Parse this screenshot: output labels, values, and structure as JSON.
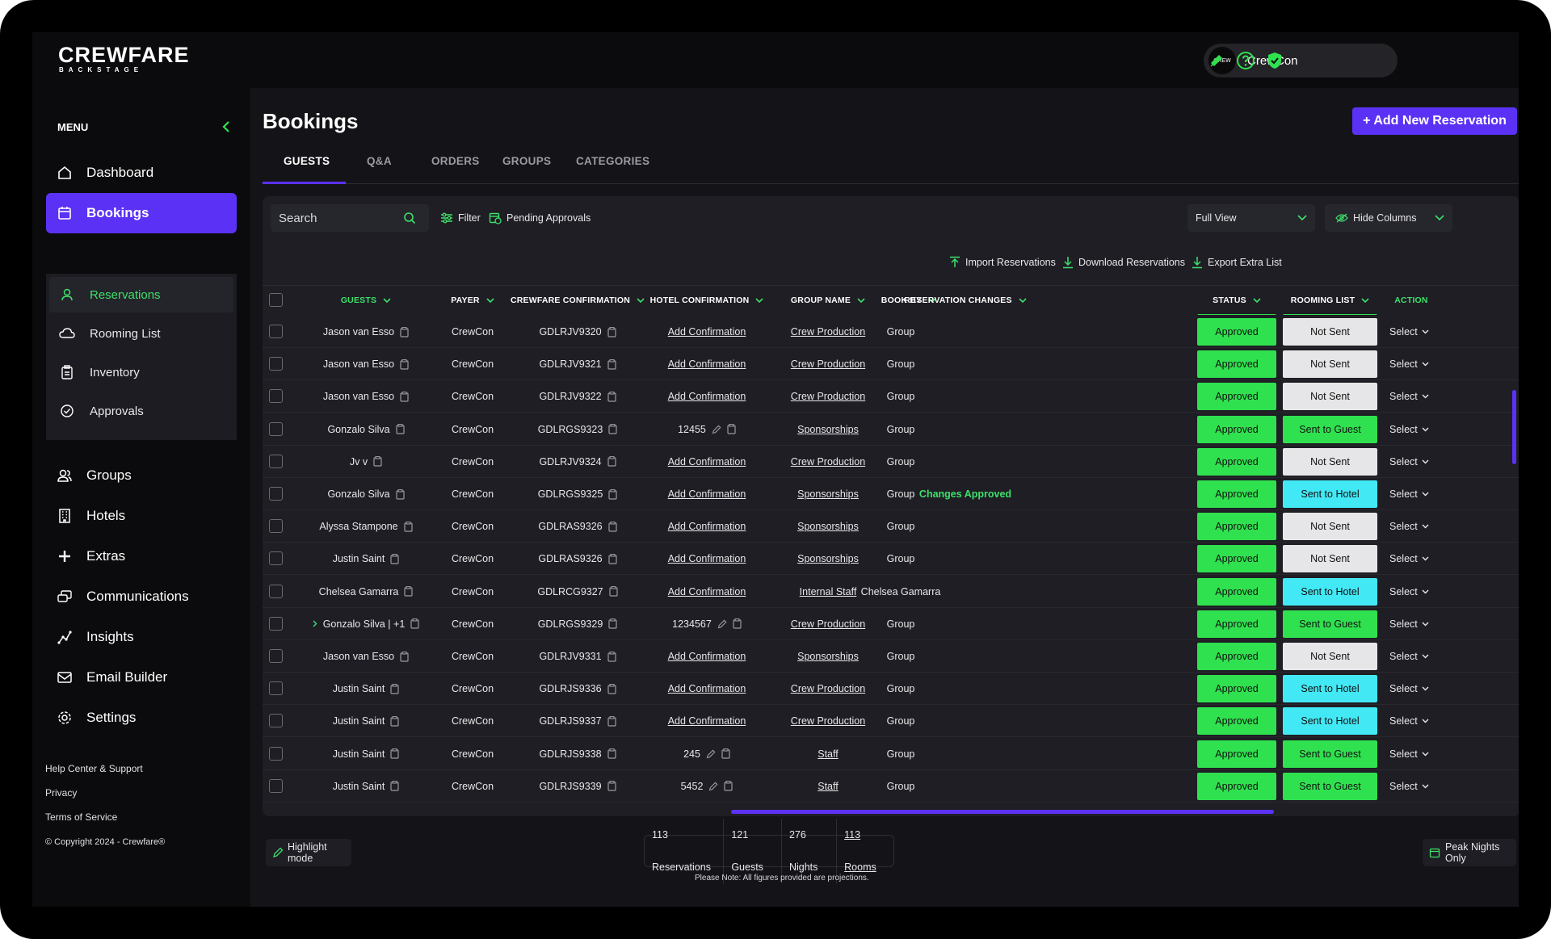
{
  "brand": {
    "name": "CREWFARE",
    "sub": "BACKSTAGE"
  },
  "org": {
    "name": "CrewCon",
    "avatar_text": "CREW"
  },
  "icons": {
    "bell": "bell-icon",
    "help": "help-icon",
    "shield": "shield-check-icon"
  },
  "colors": {
    "accent": "#5b32f5",
    "green": "#30e14f",
    "cyan": "#43e8f5",
    "bg": "#141418"
  },
  "sidebar": {
    "menu_label": "MENU",
    "items": [
      {
        "label": "Dashboard",
        "icon": "home-icon"
      },
      {
        "label": "Bookings",
        "icon": "calendar-icon"
      },
      {
        "label": "Groups",
        "icon": "users-icon"
      },
      {
        "label": "Hotels",
        "icon": "building-icon"
      },
      {
        "label": "Extras",
        "icon": "plus-icon"
      },
      {
        "label": "Communications",
        "icon": "messages-icon"
      },
      {
        "label": "Insights",
        "icon": "insights-icon"
      },
      {
        "label": "Email Builder",
        "icon": "mail-icon"
      },
      {
        "label": "Settings",
        "icon": "gear-icon"
      }
    ],
    "subitems": [
      {
        "label": "Reservations",
        "icon": "user-pin-icon"
      },
      {
        "label": "Rooming List",
        "icon": "cloud-icon"
      },
      {
        "label": "Inventory",
        "icon": "clipboard-icon"
      },
      {
        "label": "Approvals",
        "icon": "check-circle-icon"
      }
    ],
    "footer": {
      "help": "Help Center & Support",
      "privacy": "Privacy",
      "terms": "Terms of Service",
      "copyright": "© Copyright 2024 - Crewfare®"
    }
  },
  "page": {
    "title": "Bookings",
    "add_button": "+ Add New Reservation"
  },
  "tabs": [
    {
      "label": "GUESTS"
    },
    {
      "label": "Q&A"
    },
    {
      "label": "ORDERS"
    },
    {
      "label": "GROUPS"
    },
    {
      "label": "CATEGORIES"
    }
  ],
  "toolbar": {
    "search_placeholder": "Search",
    "filter": "Filter",
    "pending": "Pending Approvals",
    "view": "Full View",
    "hide_columns": "Hide Columns",
    "import": "Import Reservations",
    "download": "Download Reservations",
    "export": "Export Extra List"
  },
  "columns": {
    "guests": "GUESTS",
    "payer": "PAYER",
    "crewfare_conf": "CREWFARE CONFIRMATION",
    "hotel_conf": "HOTEL CONFIRMATION",
    "group_name": "GROUP NAME",
    "book_by": "BOOK BY",
    "changes": "RESERVATION CHANGES",
    "status": "STATUS",
    "rooming": "ROOMING LIST",
    "action": "ACTION"
  },
  "rows": [
    {
      "guest": "Jason van Esso",
      "payer": "CrewCon",
      "crewfare": "GDLRJV9320",
      "hotel": "Add Confirmation",
      "hotel_editable": false,
      "group": "Crew Production",
      "book_by": "Group",
      "changes": "",
      "status": "Approved",
      "rooming": "Not Sent",
      "rooming_type": "not",
      "action": "Select",
      "expand": false
    },
    {
      "guest": "Jason van Esso",
      "payer": "CrewCon",
      "crewfare": "GDLRJV9321",
      "hotel": "Add Confirmation",
      "hotel_editable": false,
      "group": "Crew Production",
      "book_by": "Group",
      "changes": "",
      "status": "Approved",
      "rooming": "Not Sent",
      "rooming_type": "not",
      "action": "Select",
      "expand": false
    },
    {
      "guest": "Jason van Esso",
      "payer": "CrewCon",
      "crewfare": "GDLRJV9322",
      "hotel": "Add Confirmation",
      "hotel_editable": false,
      "group": "Crew Production",
      "book_by": "Group",
      "changes": "",
      "status": "Approved",
      "rooming": "Not Sent",
      "rooming_type": "not",
      "action": "Select",
      "expand": false
    },
    {
      "guest": "Gonzalo Silva",
      "payer": "CrewCon",
      "crewfare": "GDLRGS9323",
      "hotel": "12455",
      "hotel_editable": true,
      "group": "Sponsorships",
      "book_by": "Group",
      "changes": "",
      "status": "Approved",
      "rooming": "Sent to Guest",
      "rooming_type": "guest",
      "action": "Select",
      "expand": false
    },
    {
      "guest": "Jv v",
      "payer": "CrewCon",
      "crewfare": "GDLRJV9324",
      "hotel": "Add Confirmation",
      "hotel_editable": false,
      "group": "Crew Production",
      "book_by": "Group",
      "changes": "",
      "status": "Approved",
      "rooming": "Not Sent",
      "rooming_type": "not",
      "action": "Select",
      "expand": false
    },
    {
      "guest": "Gonzalo Silva",
      "payer": "CrewCon",
      "crewfare": "GDLRGS9325",
      "hotel": "Add Confirmation",
      "hotel_editable": false,
      "group": "Sponsorships",
      "book_by": "Group",
      "changes": "Changes Approved",
      "status": "Approved",
      "rooming": "Sent to Hotel",
      "rooming_type": "hotel",
      "action": "Select",
      "expand": false
    },
    {
      "guest": "Alyssa Stampone",
      "payer": "CrewCon",
      "crewfare": "GDLRAS9326",
      "hotel": "Add Confirmation",
      "hotel_editable": false,
      "group": "Sponsorships",
      "book_by": "Group",
      "changes": "",
      "status": "Approved",
      "rooming": "Not Sent",
      "rooming_type": "not",
      "action": "Select",
      "expand": false
    },
    {
      "guest": "Justin Saint",
      "payer": "CrewCon",
      "crewfare": "GDLRAS9326",
      "hotel": "Add Confirmation",
      "hotel_editable": false,
      "group": "Sponsorships",
      "book_by": "Group",
      "changes": "",
      "status": "Approved",
      "rooming": "Not Sent",
      "rooming_type": "not",
      "action": "Select",
      "expand": false
    },
    {
      "guest": "Chelsea Gamarra",
      "payer": "CrewCon",
      "crewfare": "GDLRCG9327",
      "hotel": "Add Confirmation",
      "hotel_editable": false,
      "group": "Internal Staff",
      "book_by": "Chelsea Gamarra",
      "changes": "",
      "status": "Approved",
      "rooming": "Sent to Hotel",
      "rooming_type": "hotel",
      "action": "Select",
      "expand": false
    },
    {
      "guest": "Gonzalo Silva | +1",
      "payer": "CrewCon",
      "crewfare": "GDLRGS9329",
      "hotel": "1234567",
      "hotel_editable": true,
      "group": "Crew Production",
      "book_by": "Group",
      "changes": "",
      "status": "Approved",
      "rooming": "Sent to Guest",
      "rooming_type": "guest",
      "action": "Select",
      "expand": true
    },
    {
      "guest": "Jason van Esso",
      "payer": "CrewCon",
      "crewfare": "GDLRJV9331",
      "hotel": "Add Confirmation",
      "hotel_editable": false,
      "group": "Sponsorships",
      "book_by": "Group",
      "changes": "",
      "status": "Approved",
      "rooming": "Not Sent",
      "rooming_type": "not",
      "action": "Select",
      "expand": false
    },
    {
      "guest": "Justin Saint",
      "payer": "CrewCon",
      "crewfare": "GDLRJS9336",
      "hotel": "Add Confirmation",
      "hotel_editable": false,
      "group": "Crew Production",
      "book_by": "Group",
      "changes": "",
      "status": "Approved",
      "rooming": "Sent to Hotel",
      "rooming_type": "hotel",
      "action": "Select",
      "expand": false
    },
    {
      "guest": "Justin Saint",
      "payer": "CrewCon",
      "crewfare": "GDLRJS9337",
      "hotel": "Add Confirmation",
      "hotel_editable": false,
      "group": "Crew Production",
      "book_by": "Group",
      "changes": "",
      "status": "Approved",
      "rooming": "Sent to Hotel",
      "rooming_type": "hotel",
      "action": "Select",
      "expand": false
    },
    {
      "guest": "Justin Saint",
      "payer": "CrewCon",
      "crewfare": "GDLRJS9338",
      "hotel": "245",
      "hotel_editable": true,
      "group": "Staff",
      "book_by": "Group",
      "changes": "",
      "status": "Approved",
      "rooming": "Sent to Guest",
      "rooming_type": "guest",
      "action": "Select",
      "expand": false
    },
    {
      "guest": "Justin Saint",
      "payer": "CrewCon",
      "crewfare": "GDLRJS9339",
      "hotel": "5452",
      "hotel_editable": true,
      "group": "Staff",
      "book_by": "Group",
      "changes": "",
      "status": "Approved",
      "rooming": "Sent to Guest",
      "rooming_type": "guest",
      "action": "Select",
      "expand": false
    }
  ],
  "footer_bar": {
    "highlight": "Highlight mode",
    "reservations": "113 Reservations",
    "guests": "121 Guests",
    "nights": "276 Nights",
    "rooms": "113 Rooms",
    "note": "Please Note: All figures provided are projections.",
    "peak": "Peak Nights Only"
  }
}
